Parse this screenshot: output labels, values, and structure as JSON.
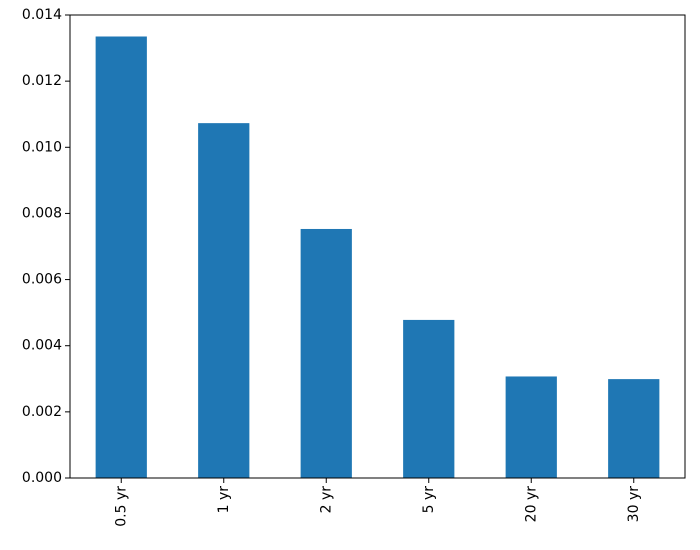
{
  "chart_data": {
    "type": "bar",
    "categories": [
      "0.5 yr",
      "1 yr",
      "2 yr",
      "5 yr",
      "20 yr",
      "30 yr"
    ],
    "values": [
      0.01335,
      0.01073,
      0.00753,
      0.00478,
      0.00307,
      0.00299
    ],
    "title": "",
    "xlabel": "",
    "ylabel": "",
    "ylim": [
      0,
      0.014
    ],
    "yticks": [
      "0.000",
      "0.002",
      "0.004",
      "0.006",
      "0.008",
      "0.010",
      "0.012",
      "0.014"
    ],
    "x_tick_rotation": "vertical",
    "grid": false,
    "legend": "none",
    "bar_color": "#1f77b4"
  }
}
